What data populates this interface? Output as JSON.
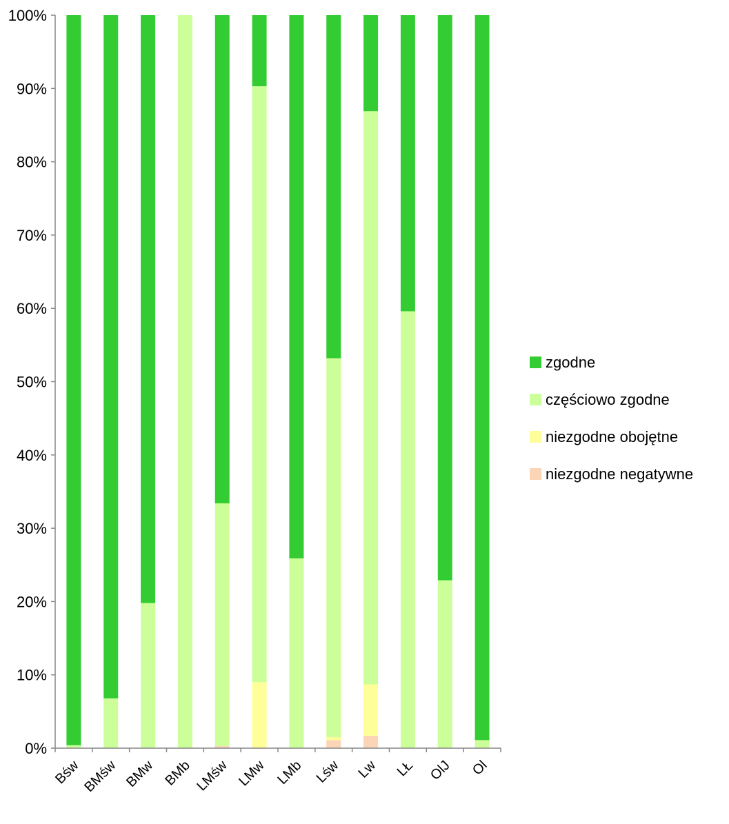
{
  "chart_data": {
    "type": "bar",
    "stacked": true,
    "percent": true,
    "categories": [
      "Bśw",
      "BMśw",
      "BMw",
      "BMb",
      "LMśw",
      "LMw",
      "LMb",
      "Lśw",
      "Lw",
      "LŁ",
      "OlJ",
      "Ol"
    ],
    "series": [
      {
        "name": "niezgodne negatywne",
        "color": "#FBD5B5",
        "values": [
          0,
          0,
          0,
          0,
          0.3,
          0,
          0,
          1.1,
          1.7,
          0,
          0,
          0
        ]
      },
      {
        "name": "niezgodne obojętne",
        "color": "#FFFF99",
        "values": [
          0,
          0,
          0,
          0,
          0,
          9.0,
          0,
          0.4,
          7.0,
          0,
          0,
          0
        ]
      },
      {
        "name": "częściowo zgodne",
        "color": "#CCFF99",
        "values": [
          0.4,
          6.8,
          19.8,
          100,
          33.1,
          81.3,
          25.9,
          51.7,
          78.2,
          59.6,
          22.9,
          1.1
        ]
      },
      {
        "name": "zgodne",
        "color": "#33CC33",
        "values": [
          99.6,
          93.2,
          80.2,
          0,
          66.6,
          9.7,
          74.1,
          46.8,
          13.1,
          40.4,
          77.1,
          98.9
        ]
      }
    ],
    "legend_order": [
      "zgodne",
      "częściowo zgodne",
      "niezgodne obojętne",
      "niezgodne negatywne"
    ],
    "yticks": [
      "0%",
      "10%",
      "20%",
      "30%",
      "40%",
      "50%",
      "60%",
      "70%",
      "80%",
      "90%",
      "100%"
    ],
    "ylim": [
      0,
      100
    ],
    "legend_position": "right",
    "grid": false
  }
}
